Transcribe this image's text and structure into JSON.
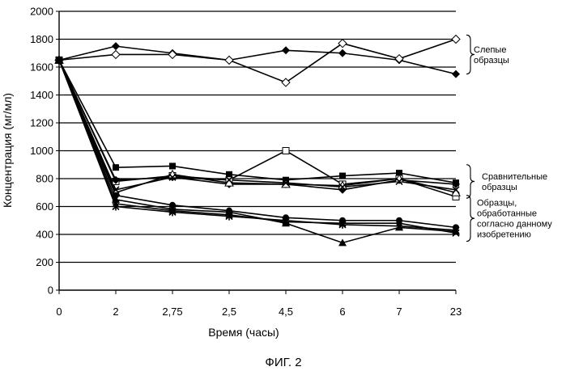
{
  "chart_data": {
    "type": "line",
    "xlabel": "Время (часы)",
    "ylabel": "Концентрация (мг/мл)",
    "categories": [
      "0",
      "2",
      "2,75",
      "2,5",
      "4,5",
      "6",
      "7",
      "23"
    ],
    "ylim": [
      0,
      2000
    ],
    "yticks": [
      0,
      200,
      400,
      600,
      800,
      1000,
      1200,
      1400,
      1600,
      1800,
      2000
    ],
    "grid": "horizontal",
    "series": [
      {
        "marker": "diamond-filled",
        "values": [
          1650,
          1750,
          1700,
          1650,
          1720,
          1700,
          1650,
          1550
        ]
      },
      {
        "marker": "diamond-open",
        "values": [
          1650,
          1690,
          1690,
          1650,
          1490,
          1770,
          1660,
          1800
        ]
      },
      {
        "marker": "square-filled",
        "values": [
          1650,
          880,
          890,
          830,
          790,
          820,
          840,
          770
        ]
      },
      {
        "marker": "square-open",
        "values": [
          1650,
          780,
          820,
          790,
          1000,
          760,
          800,
          670
        ]
      },
      {
        "marker": "diamond-filled",
        "values": [
          1650,
          790,
          810,
          760,
          760,
          720,
          790,
          760
        ]
      },
      {
        "marker": "triangle-open",
        "values": [
          1650,
          700,
          830,
          770,
          760,
          750,
          800,
          700
        ]
      },
      {
        "marker": "x",
        "values": [
          1650,
          720,
          810,
          790,
          770,
          740,
          780,
          720
        ]
      },
      {
        "marker": "circle-filled",
        "values": [
          1650,
          680,
          610,
          570,
          520,
          500,
          500,
          450
        ]
      },
      {
        "marker": "triangle-filled",
        "values": [
          1650,
          650,
          580,
          560,
          480,
          340,
          450,
          420
        ]
      },
      {
        "marker": "x",
        "values": [
          1650,
          620,
          570,
          540,
          490,
          480,
          480,
          410
        ]
      },
      {
        "marker": "asterisk",
        "values": [
          1650,
          600,
          560,
          530,
          500,
          470,
          460,
          430
        ]
      }
    ],
    "annotations": [
      {
        "id": "blank",
        "text_lines": [
          "Слепые",
          "образцы"
        ],
        "bracket_range": [
          1550,
          1830
        ]
      },
      {
        "id": "comparative",
        "text_lines": [
          "Сравнительные",
          "образцы"
        ],
        "bracket_range": [
          660,
          900
        ]
      },
      {
        "id": "invention",
        "text_lines": [
          "Образцы,",
          "обработанные",
          "согласно данному",
          "изобретению"
        ],
        "bracket_range": [
          350,
          680
        ]
      }
    ]
  },
  "caption": "ФИГ. 2"
}
